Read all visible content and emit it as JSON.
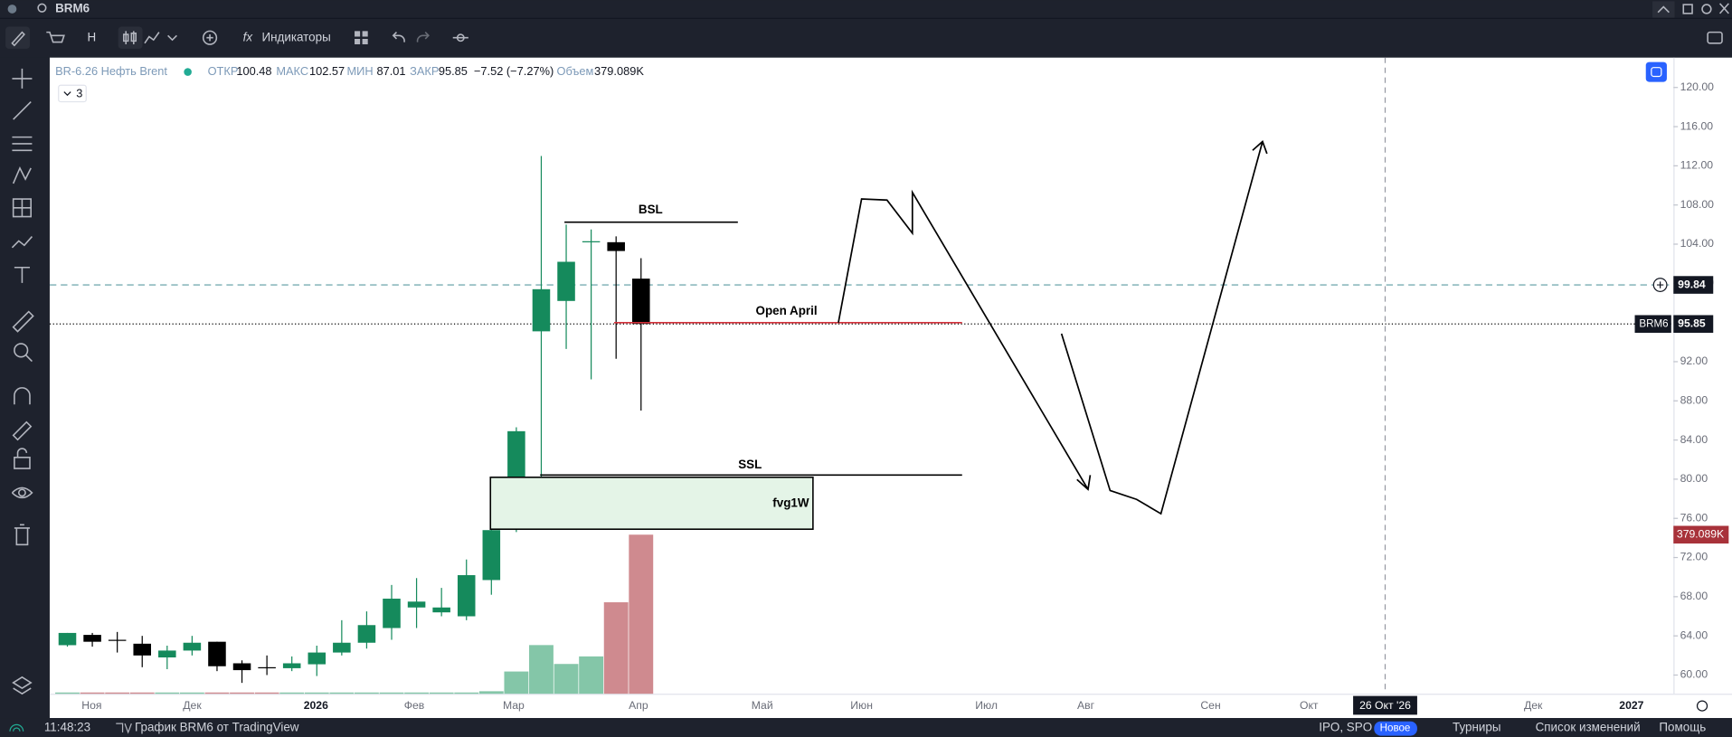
{
  "topbar": {
    "symbol": "BRM6"
  },
  "toolbar": {
    "interval": "H",
    "indicators": "Индикаторы"
  },
  "legend": {
    "name": "BR-6.26 Нефть Brent",
    "open_label": "ОТКР",
    "high_label": "МАКС",
    "low_label": "МИН",
    "close_label": "ЗАКР",
    "change": "−7.52 (−7.27%)",
    "volume_label": "Объем",
    "count": "3"
  },
  "chart_data": {
    "type": "candlestick",
    "ylim": [
      58.09,
      123.05
    ],
    "yticks": [
      {
        "value": 60,
        "label": "60.00"
      },
      {
        "value": 64,
        "label": "64.00"
      },
      {
        "value": 68,
        "label": "68.00"
      },
      {
        "value": 72,
        "label": "72.00"
      },
      {
        "value": 76,
        "label": "76.00"
      },
      {
        "value": 80,
        "label": "80.00"
      },
      {
        "value": 84,
        "label": "84.00"
      },
      {
        "value": 88,
        "label": "88.00"
      },
      {
        "value": 92,
        "label": "92.00"
      },
      {
        "value": 96,
        "label": "96.00"
      },
      {
        "value": 100,
        "label": "100.00"
      },
      {
        "value": 104,
        "label": "104.00"
      },
      {
        "value": 108,
        "label": "108.00"
      },
      {
        "value": 112,
        "label": "112.00"
      },
      {
        "value": 116,
        "label": "116.00"
      },
      {
        "value": 120,
        "label": "120.00"
      }
    ],
    "up_color": "#158a5c",
    "down_color": "#000000",
    "candles": [
      {
        "open": 63.05,
        "high": 64.3,
        "low": 62.9,
        "close": 64.3
      },
      {
        "open": 64.1,
        "high": 64.3,
        "low": 62.9,
        "close": 63.4
      },
      {
        "open": 63.6,
        "high": 64.4,
        "low": 62.3,
        "close": 63.6
      },
      {
        "open": 63.2,
        "high": 64.0,
        "low": 60.8,
        "close": 62.0
      },
      {
        "open": 61.8,
        "high": 63.0,
        "low": 60.6,
        "close": 62.5
      },
      {
        "open": 62.5,
        "high": 64.0,
        "low": 62.0,
        "close": 63.3
      },
      {
        "open": 63.4,
        "high": 63.4,
        "low": 60.4,
        "close": 60.9
      },
      {
        "open": 61.2,
        "high": 61.5,
        "low": 59.2,
        "close": 60.5
      },
      {
        "open": 60.8,
        "high": 62.0,
        "low": 60.0,
        "close": 60.8
      },
      {
        "open": 60.7,
        "high": 61.9,
        "low": 60.4,
        "close": 61.2
      },
      {
        "open": 61.1,
        "high": 63.0,
        "low": 59.9,
        "close": 62.3
      },
      {
        "open": 62.3,
        "high": 65.6,
        "low": 62.0,
        "close": 63.3
      },
      {
        "open": 63.3,
        "high": 66.5,
        "low": 62.7,
        "close": 65.1
      },
      {
        "open": 64.8,
        "high": 69.2,
        "low": 63.6,
        "close": 67.8
      },
      {
        "open": 66.9,
        "high": 69.9,
        "low": 64.8,
        "close": 67.5
      },
      {
        "open": 66.4,
        "high": 68.9,
        "low": 66.0,
        "close": 66.9
      },
      {
        "open": 66.0,
        "high": 71.8,
        "low": 65.6,
        "close": 70.2
      },
      {
        "open": 69.7,
        "high": 75.5,
        "low": 68.2,
        "close": 74.8
      },
      {
        "open": 76.9,
        "high": 85.3,
        "low": 74.6,
        "close": 84.9
      },
      {
        "open": 95.1,
        "high": 113.0,
        "low": 80.0,
        "close": 99.4
      },
      {
        "open": 98.2,
        "high": 106.0,
        "low": 93.3,
        "close": 102.2
      },
      {
        "open": 104.2,
        "high": 105.5,
        "low": 90.2,
        "close": 104.3
      },
      {
        "open": 104.2,
        "high": 104.8,
        "low": 92.3,
        "close": 103.3
      },
      {
        "open": 100.48,
        "high": 102.57,
        "low": 87.01,
        "close": 95.85
      }
    ],
    "volume": {
      "values": [
        3,
        3,
        3,
        3,
        3,
        3,
        3,
        3,
        3,
        3,
        3,
        3,
        3,
        3,
        3,
        3,
        3,
        6,
        53,
        116,
        71,
        89,
        218,
        379.089
      ],
      "value_labels": [
        null,
        null,
        null,
        null,
        null,
        null,
        null,
        null,
        null,
        null,
        null,
        null,
        null,
        null,
        null,
        null,
        null,
        null,
        null,
        null,
        null,
        null,
        null,
        "379.089K"
      ],
      "ylim": [
        0,
        1516
      ],
      "up_color": "#84c6a8",
      "down_color": "#cf8a8f"
    },
    "price_lines": [
      {
        "value": 99.84,
        "color": "#5b9aa0",
        "style": "dashed"
      },
      {
        "label": "BRM6",
        "value": 95.85,
        "color": "#000000",
        "style": "dotted"
      }
    ],
    "time_labels": [
      "Ноя",
      "Дек",
      "2026",
      "Фев",
      "Мар",
      "Апр",
      "Май",
      "Июн",
      "Июл",
      "Авг",
      "Сен",
      "Окт",
      "Дек",
      "2027"
    ],
    "crosshair_label": "26 Окт '26",
    "annotations": {
      "bsl": "BSL",
      "open_april": "Open April",
      "ssl": "SSL",
      "fvg": "fvg1W"
    }
  },
  "statusbar": {
    "time": "11:48:23",
    "chart_link": "График BRM6 от TradingView",
    "ipo": "IPO, SPO",
    "new_badge": "Новое",
    "contests": "Турниры",
    "changelog": "Список изменений",
    "help": "Помощь"
  }
}
